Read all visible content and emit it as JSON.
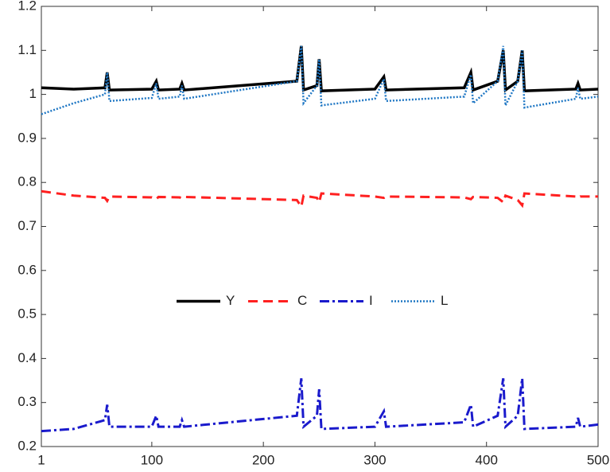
{
  "chart_data": {
    "type": "line",
    "x": [
      1,
      30,
      58,
      60,
      62,
      100,
      104,
      106,
      125,
      127,
      129,
      230,
      234,
      236,
      248,
      250,
      252,
      300,
      308,
      310,
      380,
      386,
      388,
      410,
      415,
      417,
      428,
      432,
      434,
      480,
      482,
      484,
      500
    ],
    "series": [
      {
        "name": "Y",
        "color": "#000000",
        "linestyle": "solid",
        "values": [
          1.015,
          1.012,
          1.015,
          1.05,
          1.01,
          1.012,
          1.03,
          1.01,
          1.012,
          1.025,
          1.01,
          1.03,
          1.11,
          1.01,
          1.02,
          1.08,
          1.008,
          1.012,
          1.04,
          1.01,
          1.015,
          1.05,
          1.01,
          1.03,
          1.1,
          1.01,
          1.03,
          1.1,
          1.008,
          1.012,
          1.025,
          1.01,
          1.012
        ]
      },
      {
        "name": "C",
        "color": "#ff2020",
        "linestyle": "dashed",
        "values": [
          0.78,
          0.77,
          0.765,
          0.758,
          0.768,
          0.766,
          0.762,
          0.767,
          0.766,
          0.764,
          0.767,
          0.76,
          0.745,
          0.77,
          0.765,
          0.755,
          0.775,
          0.768,
          0.765,
          0.768,
          0.766,
          0.762,
          0.767,
          0.765,
          0.755,
          0.77,
          0.76,
          0.748,
          0.775,
          0.768,
          0.765,
          0.768,
          0.768
        ]
      },
      {
        "name": "I",
        "color": "#1a1acc",
        "linestyle": "dashdot",
        "values": [
          0.235,
          0.24,
          0.26,
          0.295,
          0.245,
          0.245,
          0.27,
          0.245,
          0.245,
          0.26,
          0.245,
          0.27,
          0.355,
          0.245,
          0.27,
          0.33,
          0.24,
          0.245,
          0.28,
          0.245,
          0.255,
          0.295,
          0.245,
          0.27,
          0.355,
          0.245,
          0.27,
          0.355,
          0.24,
          0.245,
          0.265,
          0.245,
          0.25
        ]
      },
      {
        "name": "L",
        "color": "#1f77c4",
        "linestyle": "dotted",
        "values": [
          0.955,
          0.98,
          1.0,
          1.05,
          0.985,
          0.992,
          1.025,
          0.99,
          0.995,
          1.02,
          0.99,
          1.03,
          1.11,
          0.98,
          1.02,
          1.08,
          0.975,
          0.99,
          1.035,
          0.985,
          0.995,
          1.045,
          0.98,
          1.03,
          1.11,
          0.975,
          1.03,
          1.1,
          0.97,
          0.99,
          1.015,
          0.99,
          0.995
        ]
      }
    ],
    "xlim": [
      1,
      500
    ],
    "xticks": [
      1,
      100,
      200,
      300,
      400,
      500
    ],
    "ylim": [
      0.2,
      1.2
    ],
    "yticks": [
      0.2,
      0.3,
      0.4,
      0.5,
      0.6,
      0.7,
      0.8,
      0.9,
      1,
      1.1,
      1.2
    ],
    "legend": "center",
    "grid": false
  }
}
